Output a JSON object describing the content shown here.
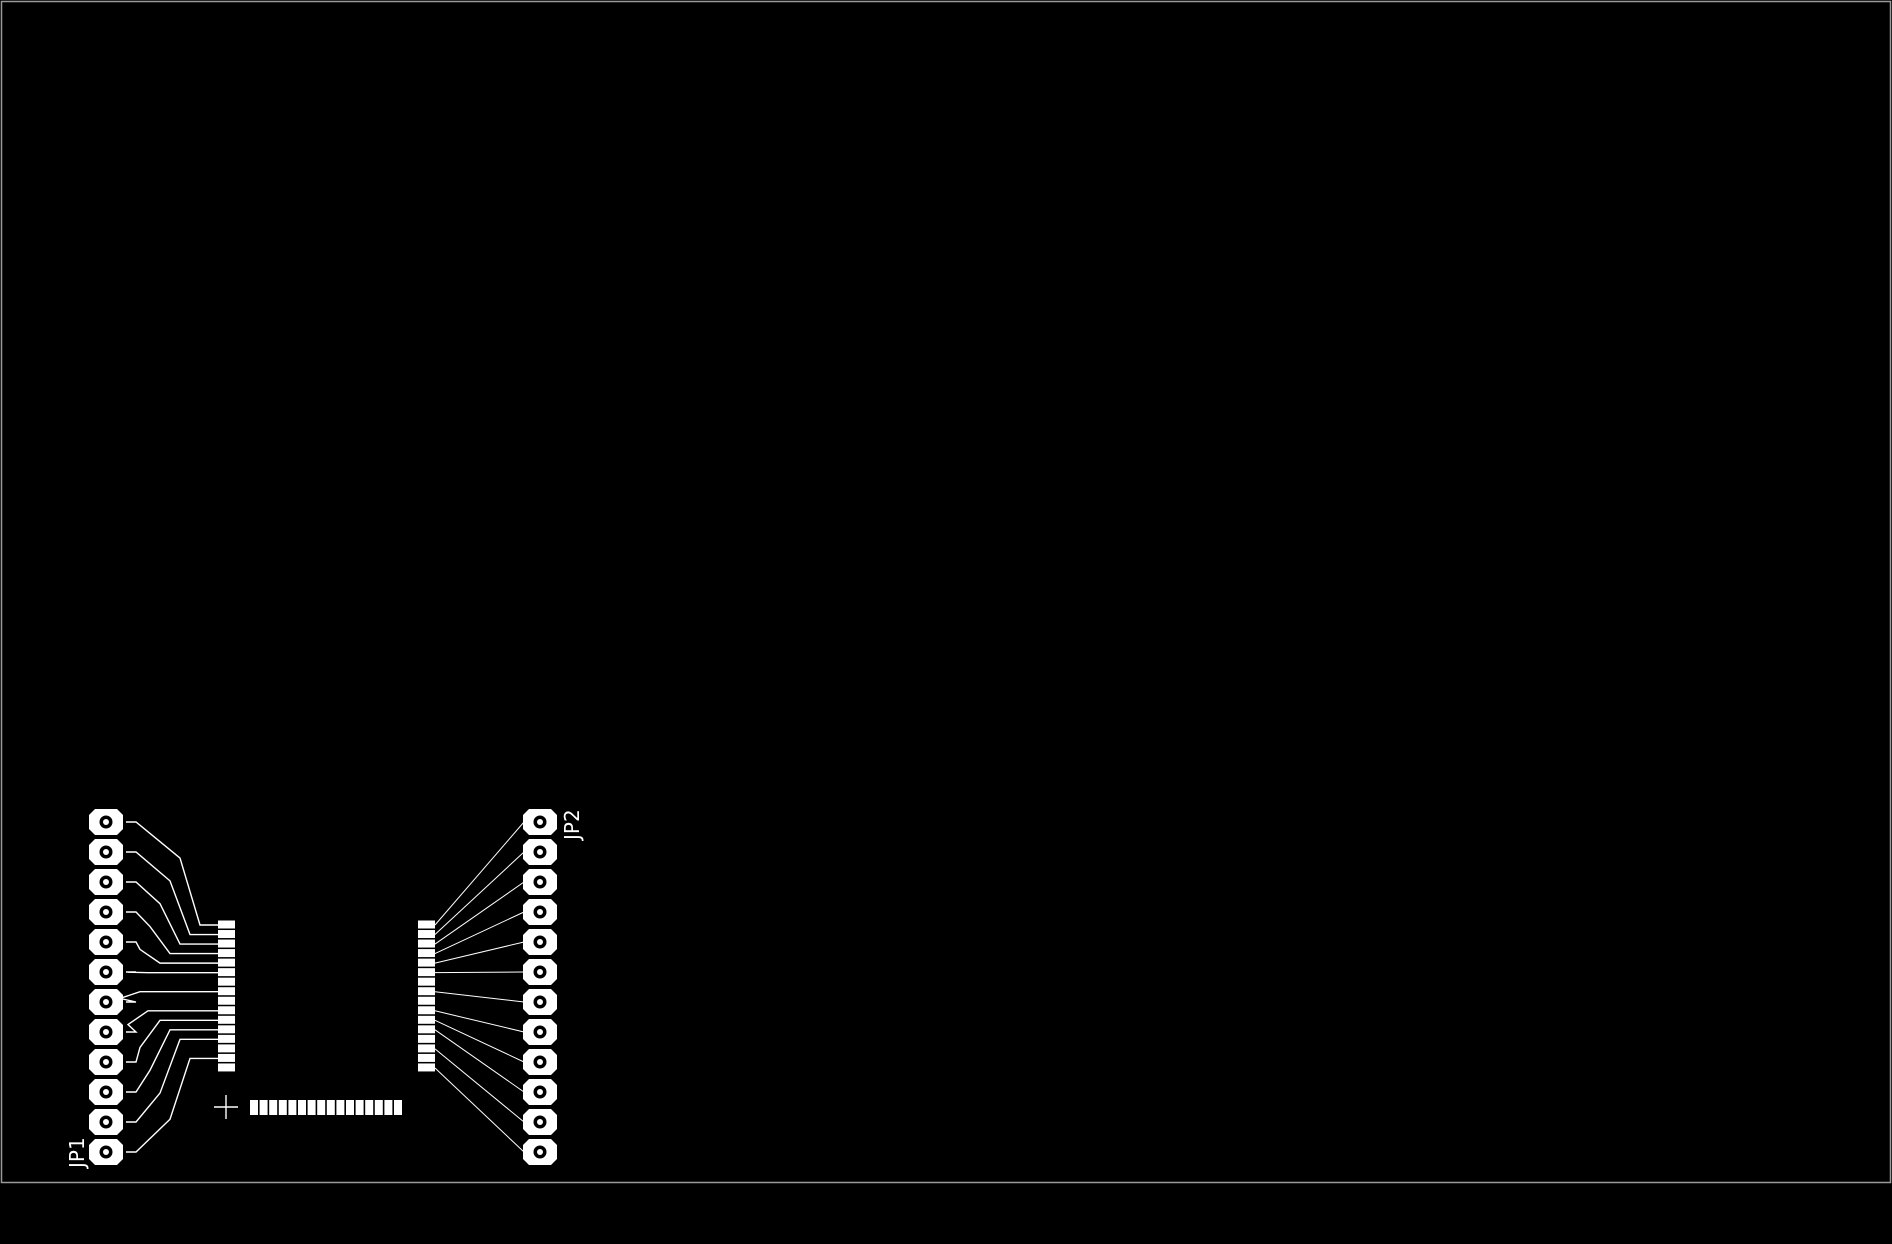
{
  "board": {
    "background": "#000000",
    "outline_color": "#9a9a9a",
    "copper_color": "#ffffff"
  },
  "components": {
    "jp1": {
      "designator": "JP1",
      "pin_count": 12
    },
    "jp2": {
      "designator": "JP2",
      "pin_count": 12
    },
    "ic_left_pads": 16,
    "ic_right_pads": 16,
    "ic_bottom_pads": 16
  },
  "icons": {
    "origin": "crosshair-icon"
  }
}
